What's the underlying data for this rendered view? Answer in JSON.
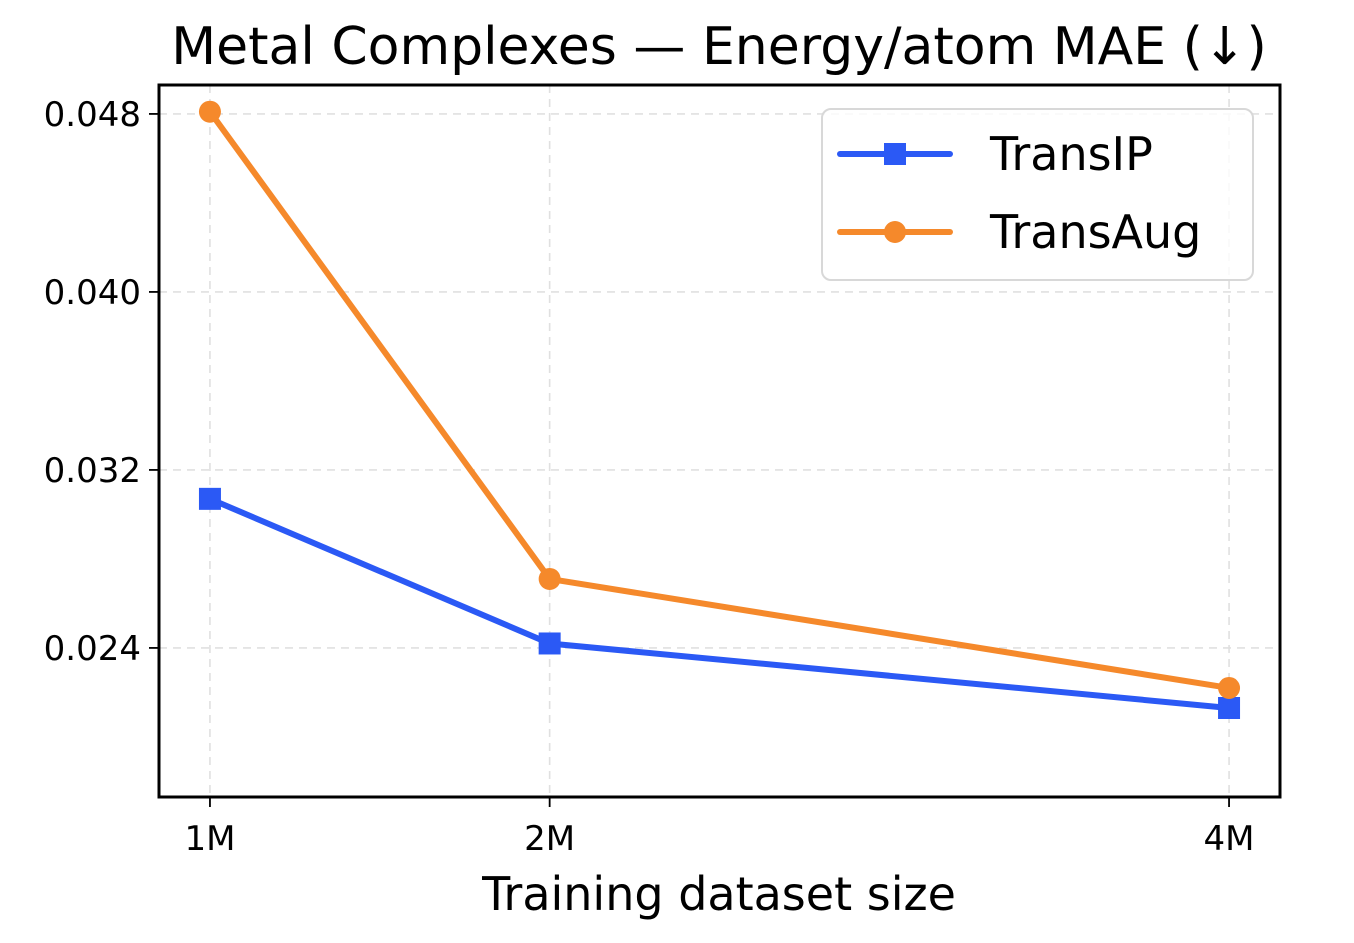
{
  "chart_data": {
    "type": "line",
    "title": "Metal Complexes — Energy/atom MAE (↓)",
    "xlabel": "Training dataset size",
    "ylabel": "",
    "categories": [
      "1M",
      "2M",
      "4M"
    ],
    "x": [
      1,
      2,
      4
    ],
    "xlim": [
      0.85,
      4.15
    ],
    "ylim": [
      0.0173,
      0.0493
    ],
    "yticks": [
      "0.048",
      "0.040",
      "0.032",
      "0.024"
    ],
    "ytick_values": [
      0.048,
      0.04,
      0.032,
      0.024
    ],
    "grid": true,
    "legend_position": "top-right",
    "series": [
      {
        "name": "TransIP",
        "values": [
          0.0307,
          0.0242,
          0.0213
        ],
        "color": "#2b59f5",
        "marker": "square"
      },
      {
        "name": "TransAug",
        "values": [
          0.0481,
          0.0271,
          0.0222
        ],
        "color": "#f5892b",
        "marker": "circle"
      }
    ]
  }
}
